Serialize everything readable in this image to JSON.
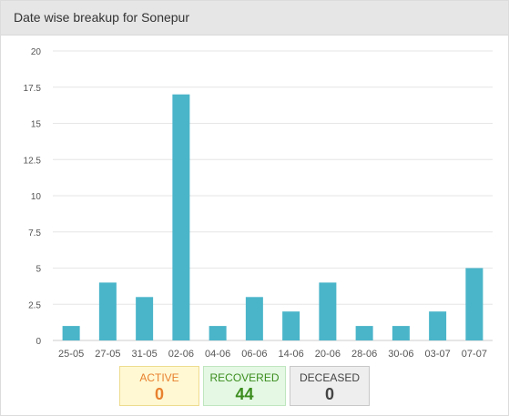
{
  "header": {
    "title": "Date wise breakup for Sonepur"
  },
  "chart_data": {
    "type": "bar",
    "title": "Date wise breakup for Sonepur",
    "xlabel": "",
    "ylabel": "",
    "categories": [
      "25-05",
      "27-05",
      "31-05",
      "02-06",
      "04-06",
      "06-06",
      "14-06",
      "20-06",
      "28-06",
      "30-06",
      "03-07",
      "07-07"
    ],
    "values": [
      1,
      4,
      3,
      17,
      1,
      3,
      2,
      4,
      1,
      1,
      2,
      5
    ],
    "ylim": [
      0,
      20
    ],
    "yticks": [
      "0",
      "2.5",
      "5",
      "7.5",
      "10",
      "12.5",
      "15",
      "17.5",
      "20"
    ],
    "grid": true,
    "bar_color": "#4ab5c9"
  },
  "stats": {
    "active": {
      "label": "ACTIVE",
      "value": "0"
    },
    "recovered": {
      "label": "RECOVERED",
      "value": "44"
    },
    "deceased": {
      "label": "DECEASED",
      "value": "0"
    }
  }
}
